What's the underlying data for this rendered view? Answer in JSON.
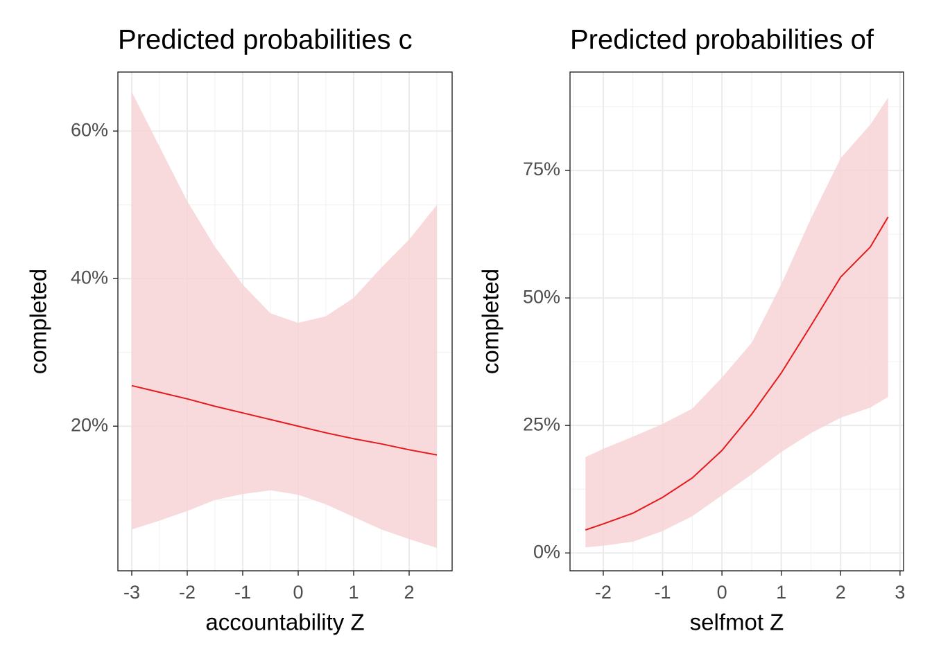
{
  "chart_data": [
    {
      "type": "line",
      "title": "Predicted probabilities c",
      "xlabel": "accountability Z",
      "ylabel": "completed",
      "x": [
        -3,
        -2.5,
        -2,
        -1.5,
        -1,
        -0.5,
        0,
        0.5,
        1,
        1.5,
        2,
        2.5
      ],
      "values": [
        25.5,
        24.6,
        23.7,
        22.7,
        21.8,
        20.9,
        20.0,
        19.1,
        18.3,
        17.6,
        16.8,
        16.1
      ],
      "upper": [
        65.3,
        57.9,
        50.5,
        44.3,
        39.2,
        35.3,
        34.0,
        34.9,
        37.4,
        41.5,
        45.3,
        50.0
      ],
      "lower": [
        6.0,
        7.2,
        8.5,
        10.0,
        10.8,
        11.3,
        10.7,
        9.4,
        7.7,
        6.0,
        4.7,
        3.5
      ],
      "color": "#e41a1c",
      "band_color": "#f8d4d6",
      "xlim": [
        -3.25,
        2.775
      ],
      "xticks": [
        -3,
        -2,
        -1,
        0,
        1,
        2
      ],
      "xminor": [
        -2.5,
        -1.5,
        -0.5,
        0.5,
        1.5,
        2.5
      ],
      "ylim": [
        0.4,
        68
      ],
      "yticks": [
        {
          "value": 20,
          "label": "20%"
        },
        {
          "value": 40,
          "label": "40%"
        },
        {
          "value": 60,
          "label": "60%"
        }
      ],
      "yminor": [
        10,
        30,
        50
      ],
      "grid": true
    },
    {
      "type": "line",
      "title": "Predicted probabilities of",
      "xlabel": "selfmot Z",
      "ylabel": "completed",
      "x": [
        -2.3,
        -2,
        -1.5,
        -1,
        -0.5,
        0,
        0.5,
        1,
        1.5,
        2,
        2.5,
        2.8
      ],
      "values": [
        4.5,
        5.7,
        7.8,
        10.9,
        14.7,
        20.1,
        27.2,
        35.3,
        44.6,
        54.1,
        60.0,
        65.9
      ],
      "upper": [
        18.8,
        20.4,
        22.8,
        25.3,
        28.3,
        34.4,
        41.2,
        52.7,
        65.6,
        77.4,
        84.0,
        89.3
      ],
      "lower": [
        1.1,
        1.4,
        2.2,
        4.3,
        7.2,
        11.3,
        15.4,
        19.8,
        23.5,
        26.5,
        28.5,
        30.6
      ],
      "color": "#e41a1c",
      "band_color": "#f8d4d6",
      "xlim": [
        -2.56,
        3.06
      ],
      "xticks": [
        -2,
        -1,
        0,
        1,
        2,
        3
      ],
      "xminor": [
        -2.5,
        -1.5,
        -0.5,
        0.5,
        1.5,
        2.5
      ],
      "ylim": [
        -3.5,
        94.3
      ],
      "yticks": [
        {
          "value": 0,
          "label": "0%"
        },
        {
          "value": 25,
          "label": "25%"
        },
        {
          "value": 50,
          "label": "50%"
        },
        {
          "value": 75,
          "label": "75%"
        }
      ],
      "yminor": [
        12.5,
        37.5,
        62.5,
        87.5
      ],
      "grid": true
    }
  ]
}
